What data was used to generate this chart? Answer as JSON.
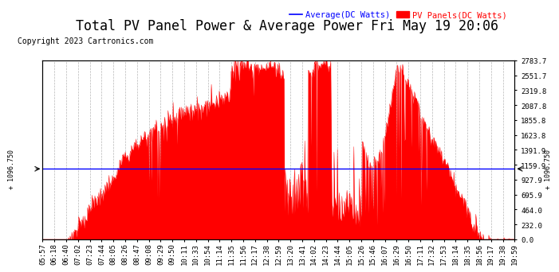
{
  "title": "Total PV Panel Power & Average Power Fri May 19 20:06",
  "copyright": "Copyright 2023 Cartronics.com",
  "y_ticks_right": [
    0.0,
    232.0,
    464.0,
    695.9,
    927.9,
    1159.9,
    1391.9,
    1623.8,
    1855.8,
    2087.8,
    2319.8,
    2551.7,
    2783.7
  ],
  "y_max": 2783.7,
  "y_min": 0.0,
  "hline_y": 1096.75,
  "hline_color": "#0000ff",
  "background_color": "#ffffff",
  "grid_color": "#b0b0b0",
  "fill_color": "#ff0000",
  "avg_line_color": "#0000ff",
  "legend_avg_label": "Average(DC Watts)",
  "legend_pv_label": "PV Panels(DC Watts)",
  "title_fontsize": 12,
  "copyright_fontsize": 7,
  "tick_fontsize": 6.5,
  "x_labels": [
    "05:57",
    "06:18",
    "06:40",
    "07:02",
    "07:23",
    "07:44",
    "08:05",
    "08:26",
    "08:47",
    "09:08",
    "09:29",
    "09:50",
    "10:11",
    "10:33",
    "10:54",
    "11:14",
    "11:35",
    "11:56",
    "12:17",
    "12:38",
    "12:59",
    "13:20",
    "13:41",
    "14:02",
    "14:23",
    "14:44",
    "15:05",
    "15:26",
    "15:46",
    "16:07",
    "16:29",
    "16:50",
    "17:11",
    "17:32",
    "17:53",
    "18:14",
    "18:35",
    "18:56",
    "19:17",
    "19:38",
    "19:59"
  ],
  "avg_value": 1096.75,
  "left_annotation": "+ 1096.750",
  "right_annotation": "+ 1096.750"
}
